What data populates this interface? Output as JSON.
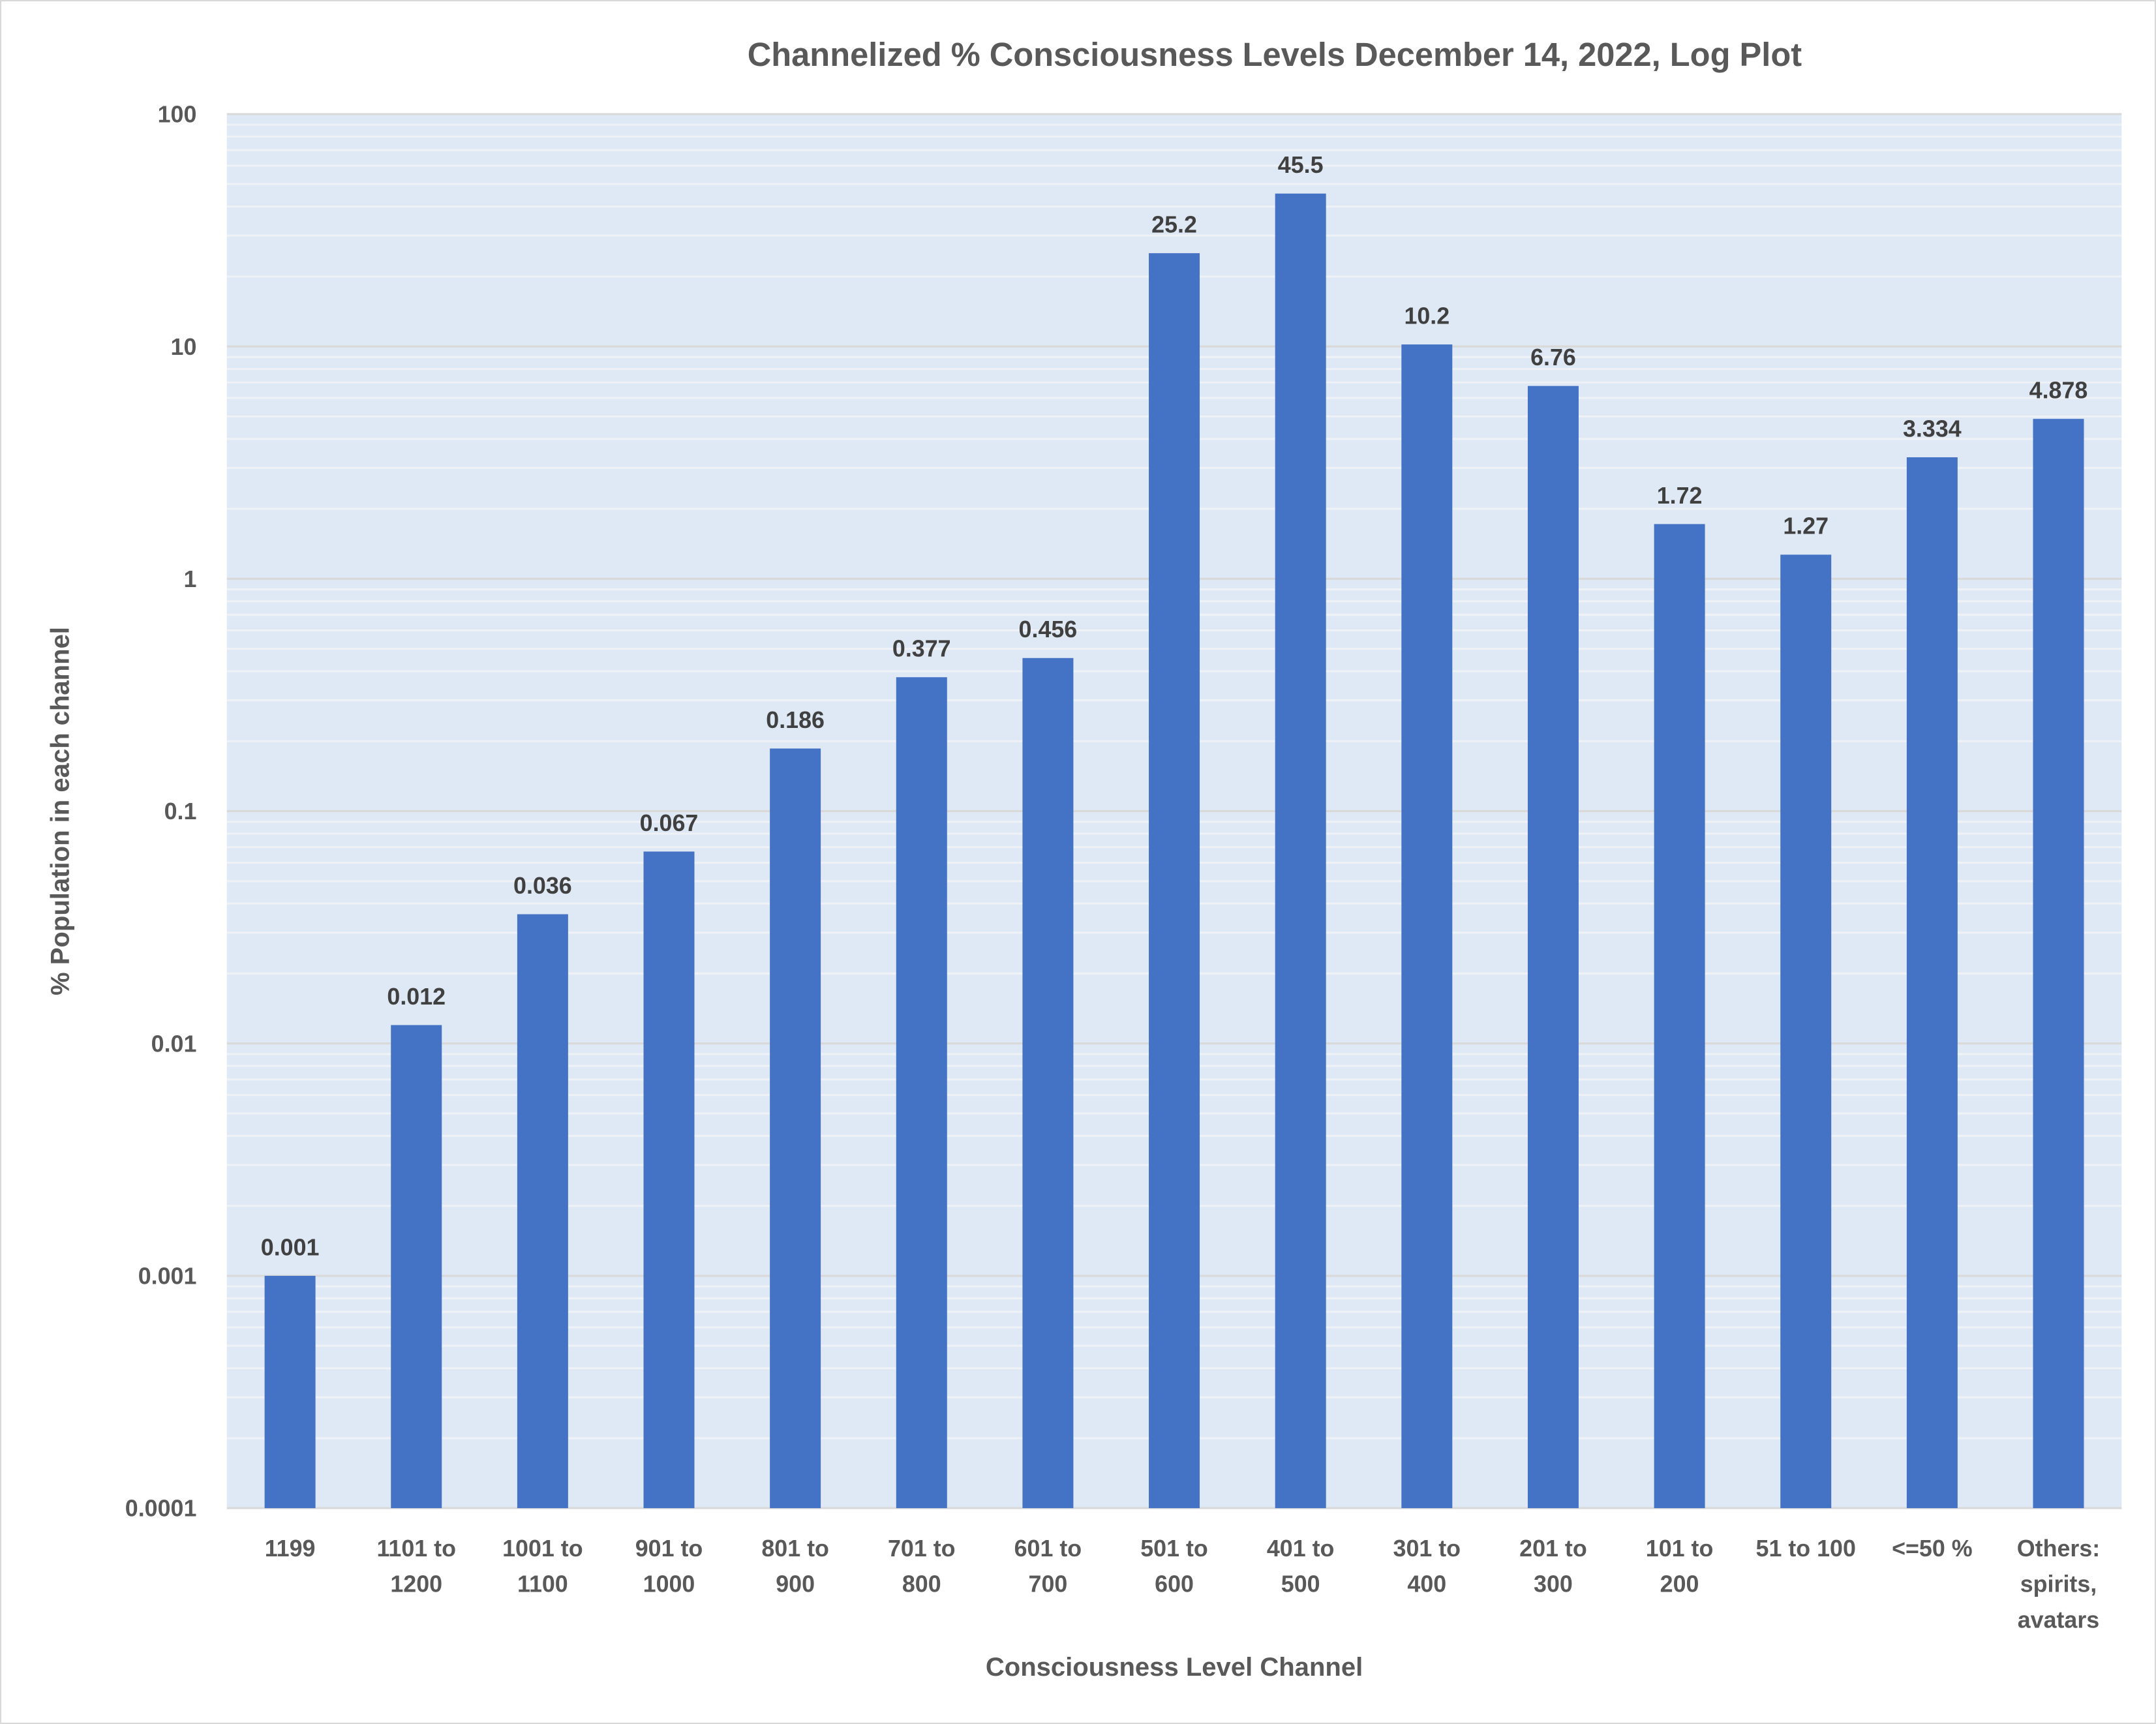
{
  "chart_data": {
    "type": "bar",
    "title": "Channelized % Consciousness Levels December 14, 2022, Log Plot",
    "xlabel": "Consciousness Level Channel",
    "ylabel": "% Population in each channel",
    "yscale": "log",
    "ylim": [
      0.0001,
      100
    ],
    "yticks": [
      "0.0001",
      "0.001",
      "0.01",
      "0.1",
      "1",
      "10",
      "100"
    ],
    "grid": true,
    "legend": "none",
    "colors": {
      "bar": "#4472c4",
      "plot_bg": "#dfe9f5",
      "major_grid": "#d9d9d9",
      "minor_grid": "#eef1f6"
    },
    "categories": [
      [
        "1199"
      ],
      [
        "1101 to",
        "1200"
      ],
      [
        "1001 to",
        "1100"
      ],
      [
        "901 to",
        "1000"
      ],
      [
        "801 to",
        "900"
      ],
      [
        "701 to",
        "800"
      ],
      [
        "601 to",
        "700"
      ],
      [
        "501 to",
        "600"
      ],
      [
        "401 to",
        "500"
      ],
      [
        "301 to",
        "400"
      ],
      [
        "201 to",
        "300"
      ],
      [
        "101 to",
        "200"
      ],
      [
        "51 to 100"
      ],
      [
        "<=50 %"
      ],
      [
        "Others:",
        "spirits,",
        "avatars"
      ]
    ],
    "values": [
      0.001,
      0.012,
      0.036,
      0.067,
      0.186,
      0.377,
      0.456,
      25.2,
      45.5,
      10.2,
      6.76,
      1.72,
      1.27,
      3.334,
      4.878
    ],
    "data_labels": [
      "0.001",
      "0.012",
      "0.036",
      "0.067",
      "0.186",
      "0.377",
      "0.456",
      "25.2",
      "45.5",
      "10.2",
      "6.76",
      "1.72",
      "1.27",
      "3.334",
      "4.878"
    ]
  }
}
